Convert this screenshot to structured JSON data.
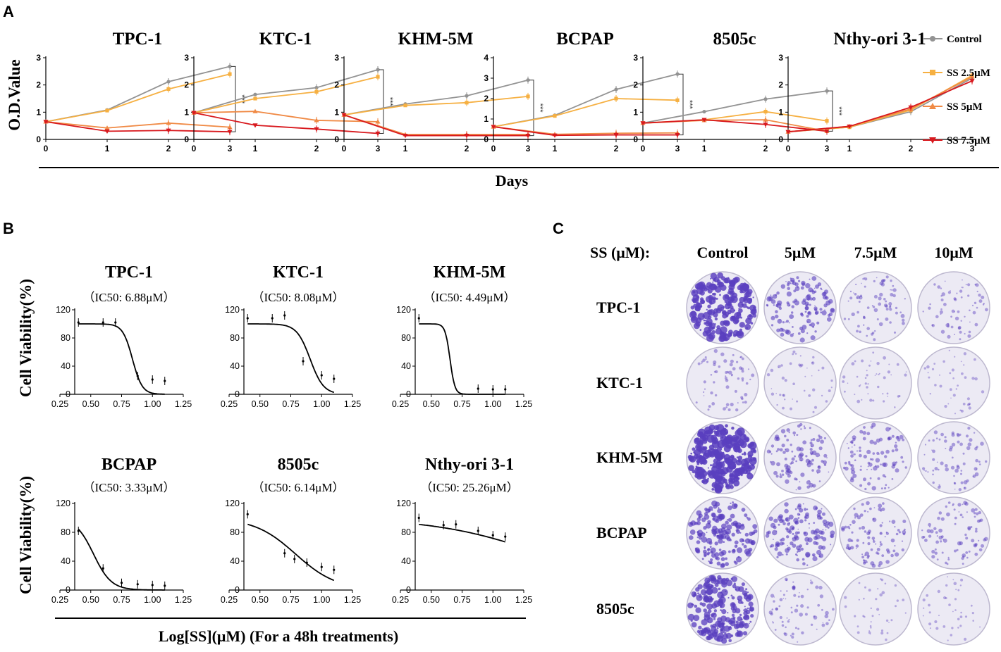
{
  "panel_labels": {
    "a": "A",
    "b": "B",
    "c": "C"
  },
  "colors": {
    "control": "#939393",
    "ss25": "#f6b042",
    "ss5": "#f08a45",
    "ss75": "#d8191e",
    "axis": "#000000",
    "dish_stain": "#5a3fbf",
    "dish_bg": "#eceaf4"
  },
  "chart_data": [
    {
      "id": "A",
      "type": "line",
      "xlabel": "Days",
      "ylabel": "O.D.Value",
      "x": [
        0,
        1,
        2,
        3
      ],
      "legend": [
        {
          "key": "control",
          "label": "Control",
          "marker": "circle"
        },
        {
          "key": "ss25",
          "label": "SS 2.5μM",
          "marker": "square"
        },
        {
          "key": "ss5",
          "label": "SS 5μM",
          "marker": "triangle-up"
        },
        {
          "key": "ss75",
          "label": "SS 7.5μM",
          "marker": "triangle-down"
        }
      ],
      "panels": [
        {
          "title": "TPC-1",
          "ylim": [
            0,
            3
          ],
          "yticks": [
            0,
            1,
            2,
            3
          ],
          "sig": "***",
          "series": {
            "control": [
              0.65,
              1.08,
              2.12,
              2.68
            ],
            "ss25": [
              0.65,
              1.06,
              1.85,
              2.4
            ],
            "ss5": [
              0.65,
              0.42,
              0.6,
              0.45
            ],
            "ss75": [
              0.65,
              0.3,
              0.33,
              0.28
            ]
          }
        },
        {
          "title": "KTC-1",
          "ylim": [
            0,
            3
          ],
          "yticks": [
            0,
            1,
            2,
            3
          ],
          "sig": "***",
          "series": {
            "control": [
              0.98,
              1.65,
              1.9,
              2.56
            ],
            "ss25": [
              0.98,
              1.5,
              1.75,
              2.3
            ],
            "ss5": [
              0.98,
              1.03,
              0.7,
              0.65
            ],
            "ss75": [
              0.98,
              0.52,
              0.38,
              0.22
            ]
          }
        },
        {
          "title": "KHM-5M",
          "ylim": [
            0,
            3
          ],
          "yticks": [
            0,
            1,
            2,
            3
          ],
          "sig": "***",
          "series": {
            "control": [
              0.9,
              1.3,
              1.6,
              2.18
            ],
            "ss25": [
              0.9,
              1.25,
              1.35,
              1.58
            ],
            "ss5": [
              0.9,
              0.18,
              0.18,
              0.18
            ],
            "ss75": [
              0.9,
              0.14,
              0.14,
              0.14
            ]
          }
        },
        {
          "title": "BCPAP",
          "ylim": [
            0,
            4
          ],
          "yticks": [
            0,
            1,
            2,
            3,
            4
          ],
          "sig": "***",
          "series": {
            "control": [
              0.62,
              1.18,
              2.45,
              3.2
            ],
            "ss25": [
              0.62,
              1.15,
              2.0,
              1.92
            ],
            "ss5": [
              0.62,
              0.25,
              0.3,
              0.32
            ],
            "ss75": [
              0.62,
              0.2,
              0.22,
              0.22
            ]
          }
        },
        {
          "title": "8505c",
          "ylim": [
            0,
            3
          ],
          "yticks": [
            0,
            1,
            2,
            3
          ],
          "sig": "***",
          "series": {
            "control": [
              0.6,
              1.02,
              1.48,
              1.78
            ],
            "ss25": [
              0.6,
              0.72,
              1.02,
              0.68
            ],
            "ss5": [
              0.6,
              0.7,
              0.72,
              0.3
            ],
            "ss75": [
              0.6,
              0.72,
              0.55,
              0.3
            ]
          }
        },
        {
          "title": "Nthy-ori 3-1",
          "ylim": [
            0,
            3
          ],
          "yticks": [
            0,
            1,
            2,
            3
          ],
          "sig": "",
          "series": {
            "control": [
              0.28,
              0.45,
              1.02,
              2.25
            ],
            "ss25": [
              0.28,
              0.45,
              1.08,
              2.35
            ],
            "ss5": [
              0.28,
              0.48,
              1.12,
              2.3
            ],
            "ss75": [
              0.28,
              0.48,
              1.18,
              2.15
            ]
          }
        }
      ]
    },
    {
      "id": "B",
      "type": "scatter",
      "xlabel": "Log[SS](μM)  (For a 48h treatments)",
      "ylabel": "Cell Viability(%)",
      "xlim": [
        0.25,
        1.25
      ],
      "xticks": [
        "0.25",
        "0.50",
        "0.75",
        "1.00",
        "1.25"
      ],
      "ylim": [
        0,
        120
      ],
      "yticks": [
        0,
        40,
        80,
        120
      ],
      "panels": [
        {
          "title": "TPC-1",
          "ic50": "（IC50: 6.88μM）",
          "top": 100,
          "bottom": 0,
          "logic50": 0.838,
          "hill": 11,
          "points": [
            [
              0.4,
              102
            ],
            [
              0.6,
              102
            ],
            [
              0.7,
              102
            ],
            [
              0.88,
              26
            ],
            [
              1.0,
              21
            ],
            [
              1.1,
              19
            ]
          ]
        },
        {
          "title": "KTC-1",
          "ic50": "（IC50: 8.08μM）",
          "top": 100,
          "bottom": 0,
          "logic50": 0.907,
          "hill": 8,
          "points": [
            [
              0.4,
              108
            ],
            [
              0.6,
              108
            ],
            [
              0.7,
              112
            ],
            [
              0.85,
              47
            ],
            [
              1.0,
              27
            ],
            [
              1.1,
              22
            ]
          ]
        },
        {
          "title": "KHM-5M",
          "ic50": "（IC50: 4.49μM）",
          "top": 100,
          "bottom": 0,
          "logic50": 0.652,
          "hill": 22,
          "points": [
            [
              0.4,
              108
            ],
            [
              0.88,
              8
            ],
            [
              1.0,
              7
            ],
            [
              1.1,
              7
            ]
          ]
        },
        {
          "title": "BCPAP",
          "ic50": "（IC50: 3.33μM）",
          "top": 100,
          "bottom": 0,
          "logic50": 0.522,
          "hill": 6,
          "points": [
            [
              0.4,
              82
            ],
            [
              0.6,
              30
            ],
            [
              0.75,
              10
            ],
            [
              0.88,
              8
            ],
            [
              1.0,
              7
            ],
            [
              1.1,
              6
            ]
          ]
        },
        {
          "title": "8505c",
          "ic50": "（IC50: 6.14μM）",
          "top": 100,
          "bottom": 0,
          "logic50": 0.788,
          "hill": 2.6,
          "points": [
            [
              0.4,
              105
            ],
            [
              0.7,
              51
            ],
            [
              0.78,
              43
            ],
            [
              0.88,
              38
            ],
            [
              1.0,
              32
            ],
            [
              1.1,
              28
            ]
          ]
        },
        {
          "title": "Nthy-ori 3-1",
          "ic50": "（IC50: 25.26μM）",
          "top": 100,
          "bottom": 0,
          "logic50": 1.402,
          "hill": 1.0,
          "points": [
            [
              0.4,
              100
            ],
            [
              0.6,
              90
            ],
            [
              0.7,
              91
            ],
            [
              0.88,
              82
            ],
            [
              1.0,
              76
            ],
            [
              1.1,
              74
            ]
          ]
        }
      ]
    }
  ],
  "panel_c": {
    "header_label": "SS (μM):",
    "columns": [
      "Control",
      "5μM",
      "7.5μM",
      "10μM"
    ],
    "rows": [
      {
        "label": "TPC-1",
        "density": [
          0.85,
          0.45,
          0.22,
          0.18
        ]
      },
      {
        "label": "KTC-1",
        "density": [
          0.18,
          0.1,
          0.1,
          0.08
        ]
      },
      {
        "label": "KHM-5M",
        "density": [
          0.95,
          0.35,
          0.32,
          0.22
        ]
      },
      {
        "label": "BCPAP",
        "density": [
          0.6,
          0.45,
          0.3,
          0.25
        ]
      },
      {
        "label": "8505c",
        "density": [
          0.75,
          0.2,
          0.08,
          0.08
        ]
      }
    ]
  }
}
